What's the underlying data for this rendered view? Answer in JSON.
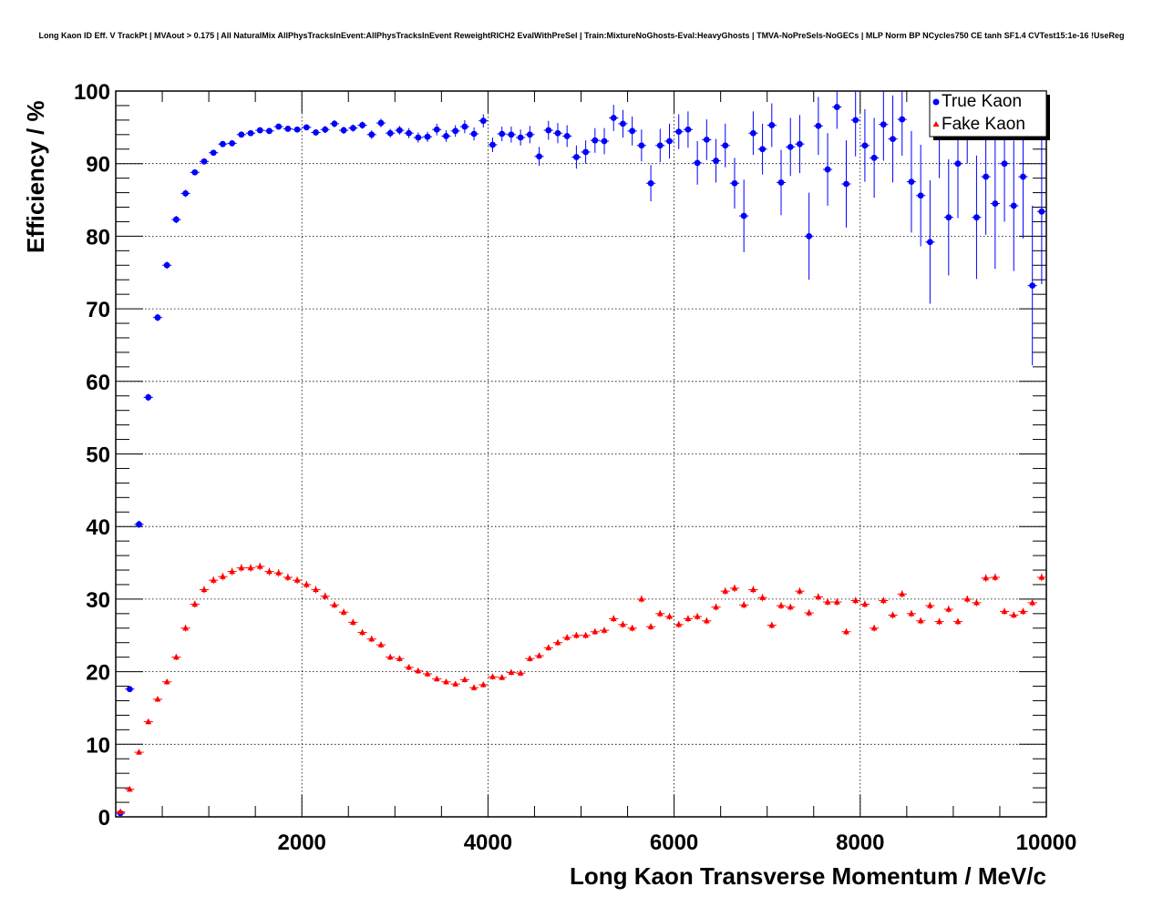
{
  "chart_data": {
    "type": "scatter",
    "title": "Long Kaon ID Eff. V TrackPt | MVAout > 0.175 | All NaturalMix AllPhysTracksInEvent:AllPhysTracksInEvent ReweightRICH2 EvalWithPreSel | Train:MixtureNoGhosts-Eval:HeavyGhosts | TMVA-NoPreSels-NoGECs | MLP Norm BP NCycles750 CE tanh SF1.4 CVTest15:1e-16 !UseReg",
    "xlabel": "Long Kaon Transverse Momentum / MeV/c",
    "ylabel": "Efficiency / %",
    "xlim": [
      0,
      10000
    ],
    "ylim": [
      0,
      100
    ],
    "xticks": [
      2000,
      4000,
      6000,
      8000,
      10000
    ],
    "xtick_labels": [
      "2000",
      "4000",
      "6000",
      "8000",
      "10000"
    ],
    "yticks": [
      0,
      10,
      20,
      30,
      40,
      50,
      60,
      70,
      80,
      90,
      100
    ],
    "ytick_labels": [
      "0",
      "10",
      "20",
      "30",
      "40",
      "50",
      "60",
      "70",
      "80",
      "90",
      "100"
    ],
    "grid": true,
    "legend_position": "top-right",
    "series": [
      {
        "name": "True Kaon",
        "color": "#0000ff",
        "marker": "circle",
        "x": [
          50,
          150,
          250,
          350,
          450,
          550,
          650,
          750,
          850,
          950,
          1050,
          1150,
          1250,
          1350,
          1450,
          1550,
          1650,
          1750,
          1850,
          1950,
          2050,
          2150,
          2250,
          2350,
          2450,
          2550,
          2650,
          2750,
          2850,
          2950,
          3050,
          3150,
          3250,
          3350,
          3450,
          3550,
          3650,
          3750,
          3850,
          3950,
          4050,
          4150,
          4250,
          4350,
          4450,
          4550,
          4650,
          4750,
          4850,
          4950,
          5050,
          5150,
          5250,
          5350,
          5450,
          5550,
          5650,
          5750,
          5850,
          5950,
          6050,
          6150,
          6250,
          6350,
          6450,
          6550,
          6650,
          6750,
          6850,
          6950,
          7050,
          7150,
          7250,
          7350,
          7450,
          7550,
          7650,
          7750,
          7850,
          7950,
          8050,
          8150,
          8250,
          8350,
          8450,
          8550,
          8650,
          8750,
          8850,
          8950,
          9050,
          9150,
          9250,
          9350,
          9450,
          9550,
          9650,
          9750,
          9850,
          9950
        ],
        "y": [
          0.5,
          17.6,
          40.3,
          57.8,
          68.8,
          76.0,
          82.3,
          85.9,
          88.8,
          90.3,
          91.5,
          92.7,
          92.8,
          94.0,
          94.2,
          94.6,
          94.5,
          95.1,
          94.8,
          94.7,
          95.0,
          94.3,
          94.7,
          95.5,
          94.6,
          94.9,
          95.3,
          94.0,
          95.6,
          94.2,
          94.6,
          94.2,
          93.6,
          93.7,
          94.7,
          93.8,
          94.5,
          95.1,
          94.1,
          95.9,
          92.6,
          94.1,
          94.0,
          93.6,
          94.0,
          91.0,
          94.6,
          94.2,
          93.8,
          90.9,
          91.6,
          93.2,
          93.1,
          96.3,
          95.5,
          94.5,
          92.5,
          87.3,
          92.5,
          93.1,
          94.4,
          94.7,
          90.1,
          93.3,
          90.4,
          92.5,
          87.3,
          82.8,
          94.2,
          92.0,
          95.3,
          87.4,
          92.3,
          92.7,
          80.0,
          95.2,
          89.2,
          97.8,
          87.2,
          96.0,
          92.5,
          90.8,
          95.4,
          93.4,
          96.1,
          87.5,
          85.6,
          79.2,
          94.0,
          82.6,
          90.0,
          96.0,
          82.6,
          88.2,
          84.5,
          90.0,
          84.2,
          88.2,
          73.2,
          83.4
        ],
        "err": [
          0.2,
          0.4,
          0.5,
          0.5,
          0.5,
          0.5,
          0.5,
          0.5,
          0.4,
          0.4,
          0.4,
          0.4,
          0.4,
          0.4,
          0.4,
          0.4,
          0.4,
          0.4,
          0.4,
          0.4,
          0.4,
          0.4,
          0.5,
          0.5,
          0.5,
          0.5,
          0.5,
          0.6,
          0.6,
          0.6,
          0.6,
          0.7,
          0.7,
          0.7,
          0.8,
          0.8,
          0.8,
          0.9,
          0.9,
          0.9,
          1.0,
          1.0,
          1.1,
          1.1,
          1.2,
          1.3,
          1.3,
          1.4,
          1.5,
          1.6,
          1.6,
          1.7,
          1.8,
          1.8,
          1.9,
          2.0,
          2.2,
          2.5,
          2.3,
          2.4,
          2.4,
          2.5,
          3.0,
          2.8,
          3.0,
          3.0,
          3.5,
          5.0,
          3.0,
          3.5,
          3.0,
          4.5,
          4.0,
          4.0,
          6.0,
          4.0,
          5.0,
          3.0,
          6.0,
          5.0,
          5.0,
          5.5,
          5.0,
          6.0,
          5.0,
          7.0,
          7.0,
          8.5,
          6.0,
          8.0,
          7.5,
          6.0,
          8.5,
          8.0,
          9.0,
          8.0,
          9.0,
          8.5,
          11.0,
          10.0
        ]
      },
      {
        "name": "Fake Kaon",
        "color": "#ff0000",
        "marker": "triangle",
        "x": [
          50,
          150,
          250,
          350,
          450,
          550,
          650,
          750,
          850,
          950,
          1050,
          1150,
          1250,
          1350,
          1450,
          1550,
          1650,
          1750,
          1850,
          1950,
          2050,
          2150,
          2250,
          2350,
          2450,
          2550,
          2650,
          2750,
          2850,
          2950,
          3050,
          3150,
          3250,
          3350,
          3450,
          3550,
          3650,
          3750,
          3850,
          3950,
          4050,
          4150,
          4250,
          4350,
          4450,
          4550,
          4650,
          4750,
          4850,
          4950,
          5050,
          5150,
          5250,
          5350,
          5450,
          5550,
          5650,
          5750,
          5850,
          5950,
          6050,
          6150,
          6250,
          6350,
          6450,
          6550,
          6650,
          6750,
          6850,
          6950,
          7050,
          7150,
          7250,
          7350,
          7450,
          7550,
          7650,
          7750,
          7850,
          7950,
          8050,
          8150,
          8250,
          8350,
          8450,
          8550,
          8650,
          8750,
          8850,
          8950,
          9050,
          9150,
          9250,
          9350,
          9450,
          9550,
          9650,
          9750,
          9850,
          9950
        ],
        "y": [
          0.7,
          3.8,
          8.9,
          13.1,
          16.2,
          18.6,
          22.0,
          26.0,
          29.3,
          31.3,
          32.6,
          33.1,
          33.8,
          34.3,
          34.3,
          34.5,
          33.8,
          33.6,
          33.0,
          32.6,
          32.0,
          31.3,
          30.4,
          29.2,
          28.2,
          26.8,
          25.4,
          24.5,
          23.7,
          22.0,
          21.8,
          20.6,
          20.1,
          19.7,
          19.0,
          18.6,
          18.3,
          18.9,
          17.8,
          18.2,
          19.3,
          19.2,
          19.9,
          19.8,
          21.8,
          22.2,
          23.3,
          24.0,
          24.7,
          25.0,
          25.0,
          25.5,
          25.7,
          27.3,
          26.5,
          26.0,
          30.0,
          26.2,
          28.0,
          27.6,
          26.5,
          27.3,
          27.6,
          27.0,
          28.9,
          31.1,
          31.5,
          29.2,
          31.3,
          30.2,
          26.4,
          29.1,
          28.9,
          31.1,
          28.1,
          30.3,
          29.6,
          29.6,
          25.5,
          29.8,
          29.3,
          26.0,
          29.8,
          27.8,
          30.7,
          28.0,
          27.0,
          29.1,
          26.9,
          28.6,
          26.9,
          30.0,
          29.5,
          32.9,
          33.0,
          28.3,
          27.8,
          28.3,
          29.5,
          33.0
        ]
      }
    ]
  }
}
